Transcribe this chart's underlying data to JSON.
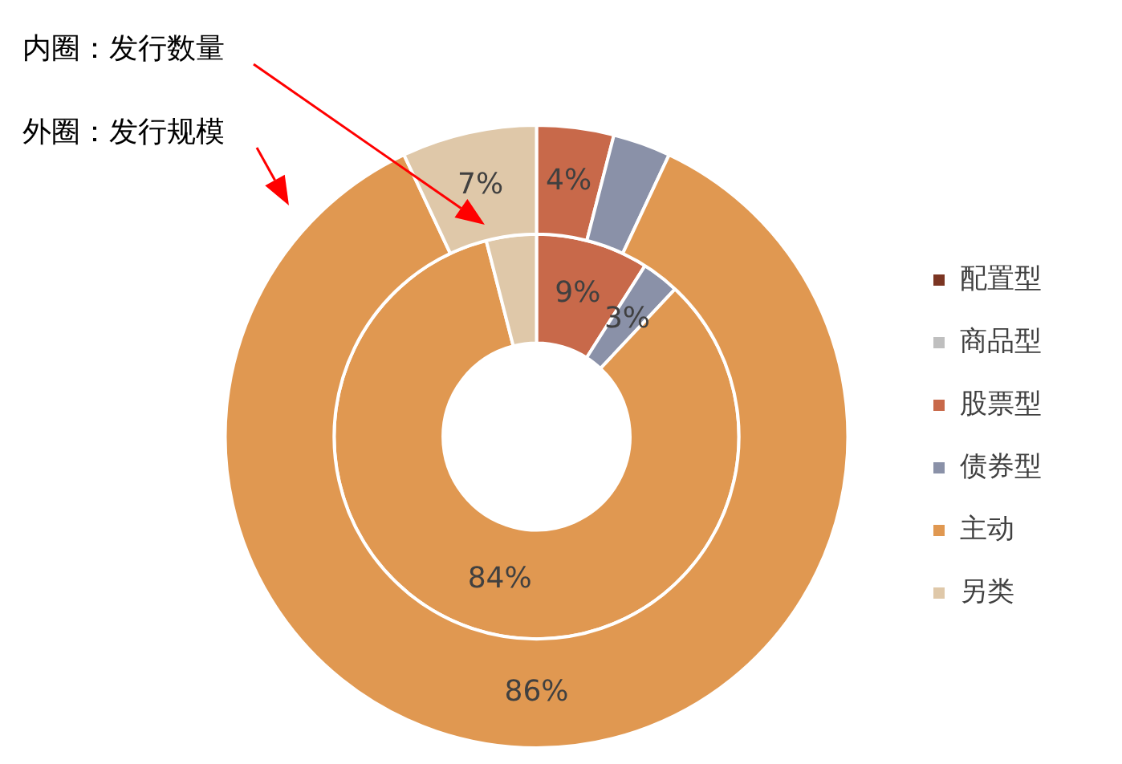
{
  "chart_data": {
    "type": "donut",
    "categories": [
      "配置型",
      "商品型",
      "股票型",
      "债券型",
      "主动",
      "另类"
    ],
    "series": [
      {
        "values": [
          0,
          0,
          9,
          3,
          84,
          4
        ],
        "value_labels": [
          null,
          null,
          "9%",
          "3%",
          "84%",
          null
        ]
      },
      {
        "values": [
          0,
          0,
          4,
          3,
          86,
          7
        ],
        "value_labels": [
          null,
          null,
          "4%",
          null,
          "86%",
          "7%"
        ]
      }
    ],
    "colors": [
      "#7b3522",
      "#bfbfbf",
      "#c8694a",
      "#8a91a8",
      "#e09851",
      "#dfc8a9"
    ],
    "annotations": [
      "内圈：发行数量",
      "外圈：发行规模"
    ],
    "legend": "right"
  }
}
